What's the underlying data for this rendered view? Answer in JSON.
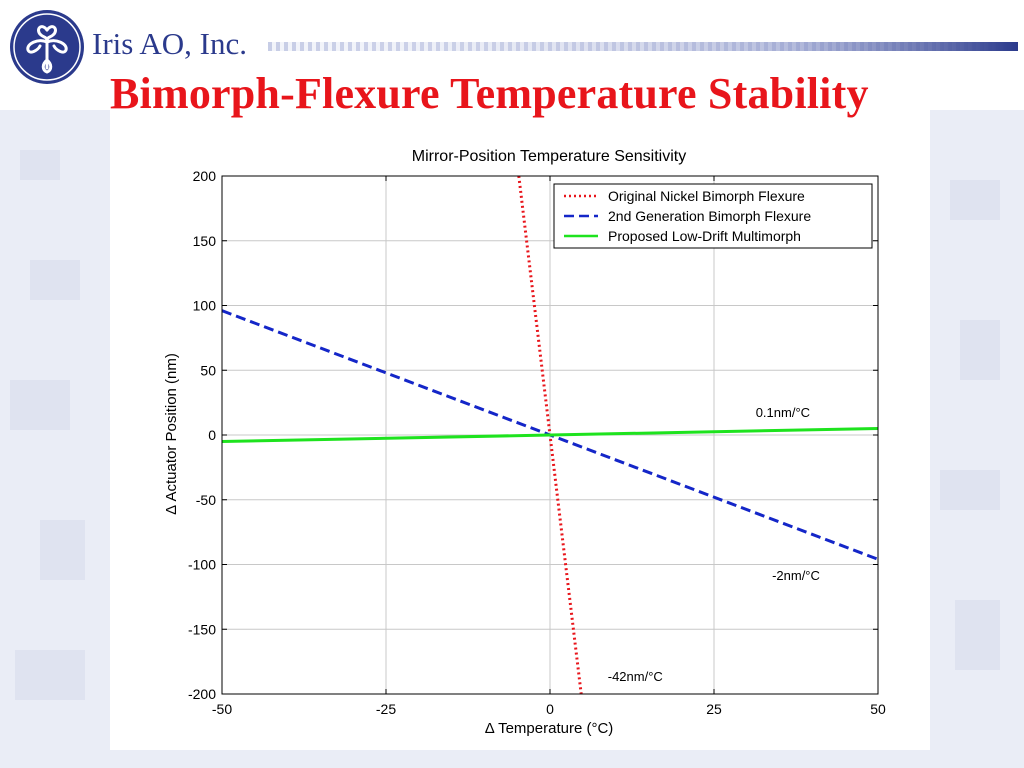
{
  "header": {
    "company": "Iris AO, Inc.",
    "title": "Bimorph-Flexure Temperature Stability",
    "logo_icon": "iris-flower-logo-icon",
    "colors": {
      "title": "#e8151b",
      "brand": "#2b3a8c",
      "bar_dark": "#2b3a8c"
    }
  },
  "chart_data": {
    "type": "line",
    "title": "Mirror-Position Temperature Sensitivity",
    "xlabel": "Δ Temperature (°C)",
    "ylabel": "Δ Actuator Position (nm)",
    "xlim": [
      -50,
      50
    ],
    "ylim": [
      -200,
      200
    ],
    "xticks": [
      -50,
      -25,
      0,
      25,
      50
    ],
    "yticks": [
      -200,
      -150,
      -100,
      -50,
      0,
      50,
      100,
      150,
      200
    ],
    "grid": true,
    "legend_position": "top-right",
    "series": [
      {
        "name": "Original Nickel Bimorph Flexure",
        "color": "#e8151b",
        "style": "dotted",
        "x": [
          -4.76,
          4.76
        ],
        "y": [
          200,
          -200
        ]
      },
      {
        "name": "2nd Generation Bimorph Flexure",
        "color": "#1426c8",
        "style": "dashed",
        "x": [
          -50,
          50
        ],
        "y": [
          96,
          -96
        ]
      },
      {
        "name": "Proposed Low-Drift Multimorph",
        "color": "#1ee31e",
        "style": "solid",
        "x": [
          -50,
          0,
          50
        ],
        "y": [
          -5,
          0,
          5
        ]
      }
    ],
    "annotations": [
      {
        "text": "0.1nm/°C",
        "x": 35.5,
        "y": 14
      },
      {
        "text": "-2nm/°C",
        "x": 37.5,
        "y": -112
      },
      {
        "text": "-42nm/°C",
        "x": 13,
        "y": -190
      }
    ]
  }
}
